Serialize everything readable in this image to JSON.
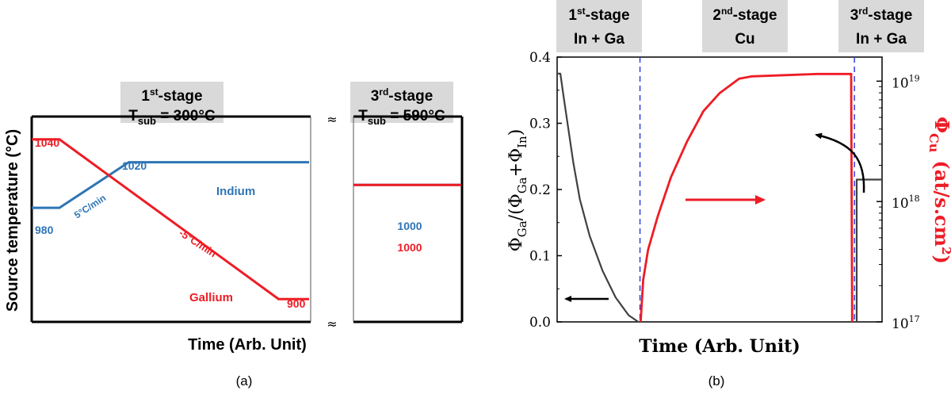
{
  "chart_data": [
    {
      "type": "line",
      "panel_label": "(a)",
      "xlabel": "Time (Arb. Unit)",
      "ylabel": "Source temperature (°C)",
      "x_axis_ticks": "none (arbitrary units)",
      "y_axis_ticks": "none",
      "y_data_range": [
        880,
        1060
      ],
      "axis_break": "≈",
      "stage_headers": [
        {
          "stage_base": "1",
          "stage_sup": "st",
          "stage_rest": "-stage",
          "tsub_base": "T",
          "tsub_sub": "sub",
          "tsub_value": " = 300°C"
        },
        {
          "stage_base": "3",
          "stage_sup": "rd",
          "stage_rest": "-stage",
          "tsub_base": "T",
          "tsub_sub": "sub",
          "tsub_value": " = 590°C"
        }
      ],
      "series": [
        {
          "name": "Indium",
          "color": "#2e75b6",
          "points": [
            [
              0.0,
              980
            ],
            [
              0.1,
              980
            ],
            [
              0.35,
              1020
            ],
            [
              1.0,
              1020
            ],
            [
              1.25,
              1000
            ],
            [
              1.6,
              1000
            ]
          ],
          "segment_break_after_index": 3
        },
        {
          "name": "Gallium",
          "color": "#ee1c25",
          "points": [
            [
              0.0,
              1040
            ],
            [
              0.1,
              1040
            ],
            [
              0.89,
              900
            ],
            [
              1.0,
              900
            ],
            [
              1.25,
              1000
            ],
            [
              1.6,
              1000
            ]
          ],
          "segment_break_after_index": 3
        }
      ],
      "annotations": {
        "in_start": "980",
        "in_plateau": "1020",
        "in_ramp": "5°C/min",
        "in_name": "Indium",
        "ga_start": "1040",
        "ga_ramp": "-5°C/min",
        "ga_name": "Gallium",
        "ga_end": "900",
        "in_stage3": "1000",
        "ga_stage3": "1000"
      }
    },
    {
      "type": "line",
      "panel_label": "(b)",
      "xlabel": "Time (Arb. Unit)",
      "x_axis_ticks": "none (arbitrary units)",
      "ylabel_left_parts": {
        "phi": "Φ",
        "ga": "Ga",
        "mid": "/(Φ",
        "ga2": "Ga",
        "plus": "+Φ",
        "in": "In",
        "end": ")"
      },
      "ylabel_right_parts": {
        "phi": "Φ",
        "cu": "Cu",
        "unit": "(at/s.cm",
        "exp": "2",
        "end": ")"
      },
      "ylim_left": [
        0.0,
        0.4
      ],
      "yticks_left": [
        "0.0",
        "0.1",
        "0.2",
        "0.3",
        "0.4"
      ],
      "yscale_right": "log",
      "ylim_right_exp": [
        17,
        19.2
      ],
      "yticks_right": [
        {
          "base": "10",
          "exp": "17"
        },
        {
          "base": "10",
          "exp": "18"
        },
        {
          "base": "10",
          "exp": "19"
        }
      ],
      "xlim": [
        0,
        1
      ],
      "stage_boundaries": [
        0.255,
        0.915
      ],
      "stage_headers": [
        {
          "line1_base": "1",
          "line1_sup": "st",
          "line1_rest": "-stage",
          "line2": "In + Ga"
        },
        {
          "line1_base": "2",
          "line1_sup": "nd",
          "line1_rest": "-stage",
          "line2": "Cu"
        },
        {
          "line1_base": "3",
          "line1_sup": "rd",
          "line1_rest": "-stage",
          "line2": "In + Ga"
        }
      ],
      "series": [
        {
          "name": "Ga/(Ga+In) ratio",
          "axis": "left",
          "color": "#404040",
          "points": [
            [
              0.0,
              0.375
            ],
            [
              0.01,
              0.375
            ],
            [
              0.02,
              0.34
            ],
            [
              0.05,
              0.24
            ],
            [
              0.07,
              0.185
            ],
            [
              0.1,
              0.13
            ],
            [
              0.14,
              0.077
            ],
            [
              0.18,
              0.037
            ],
            [
              0.22,
              0.01
            ],
            [
              0.25,
              0.0
            ]
          ]
        },
        {
          "name": "Ga/(Ga+In) ratio, 3rd stage",
          "axis": "left",
          "color": "#404040",
          "points": [
            [
              0.922,
              0.0
            ],
            [
              0.922,
              0.215
            ],
            [
              1.0,
              0.215
            ]
          ]
        },
        {
          "name": "Cu flux",
          "axis": "right",
          "color": "#ee1c25",
          "log_points": [
            [
              0.257,
              17.0
            ],
            [
              0.265,
              17.35
            ],
            [
              0.28,
              17.6
            ],
            [
              0.31,
              17.88
            ],
            [
              0.35,
              18.2
            ],
            [
              0.4,
              18.5
            ],
            [
              0.45,
              18.75
            ],
            [
              0.5,
              18.9
            ],
            [
              0.54,
              18.98
            ],
            [
              0.56,
              19.02
            ],
            [
              0.6,
              19.04
            ],
            [
              0.7,
              19.05
            ],
            [
              0.8,
              19.06
            ],
            [
              0.905,
              19.06
            ],
            [
              0.908,
              17.0
            ]
          ]
        }
      ],
      "arrows": [
        {
          "direction": "left",
          "color": "#000000",
          "target_axis": "left"
        },
        {
          "direction": "right",
          "color": "#ee1c25",
          "target_axis": "right"
        },
        {
          "direction": "left-curved",
          "color": "#000000",
          "target_axis": "left"
        }
      ]
    }
  ]
}
